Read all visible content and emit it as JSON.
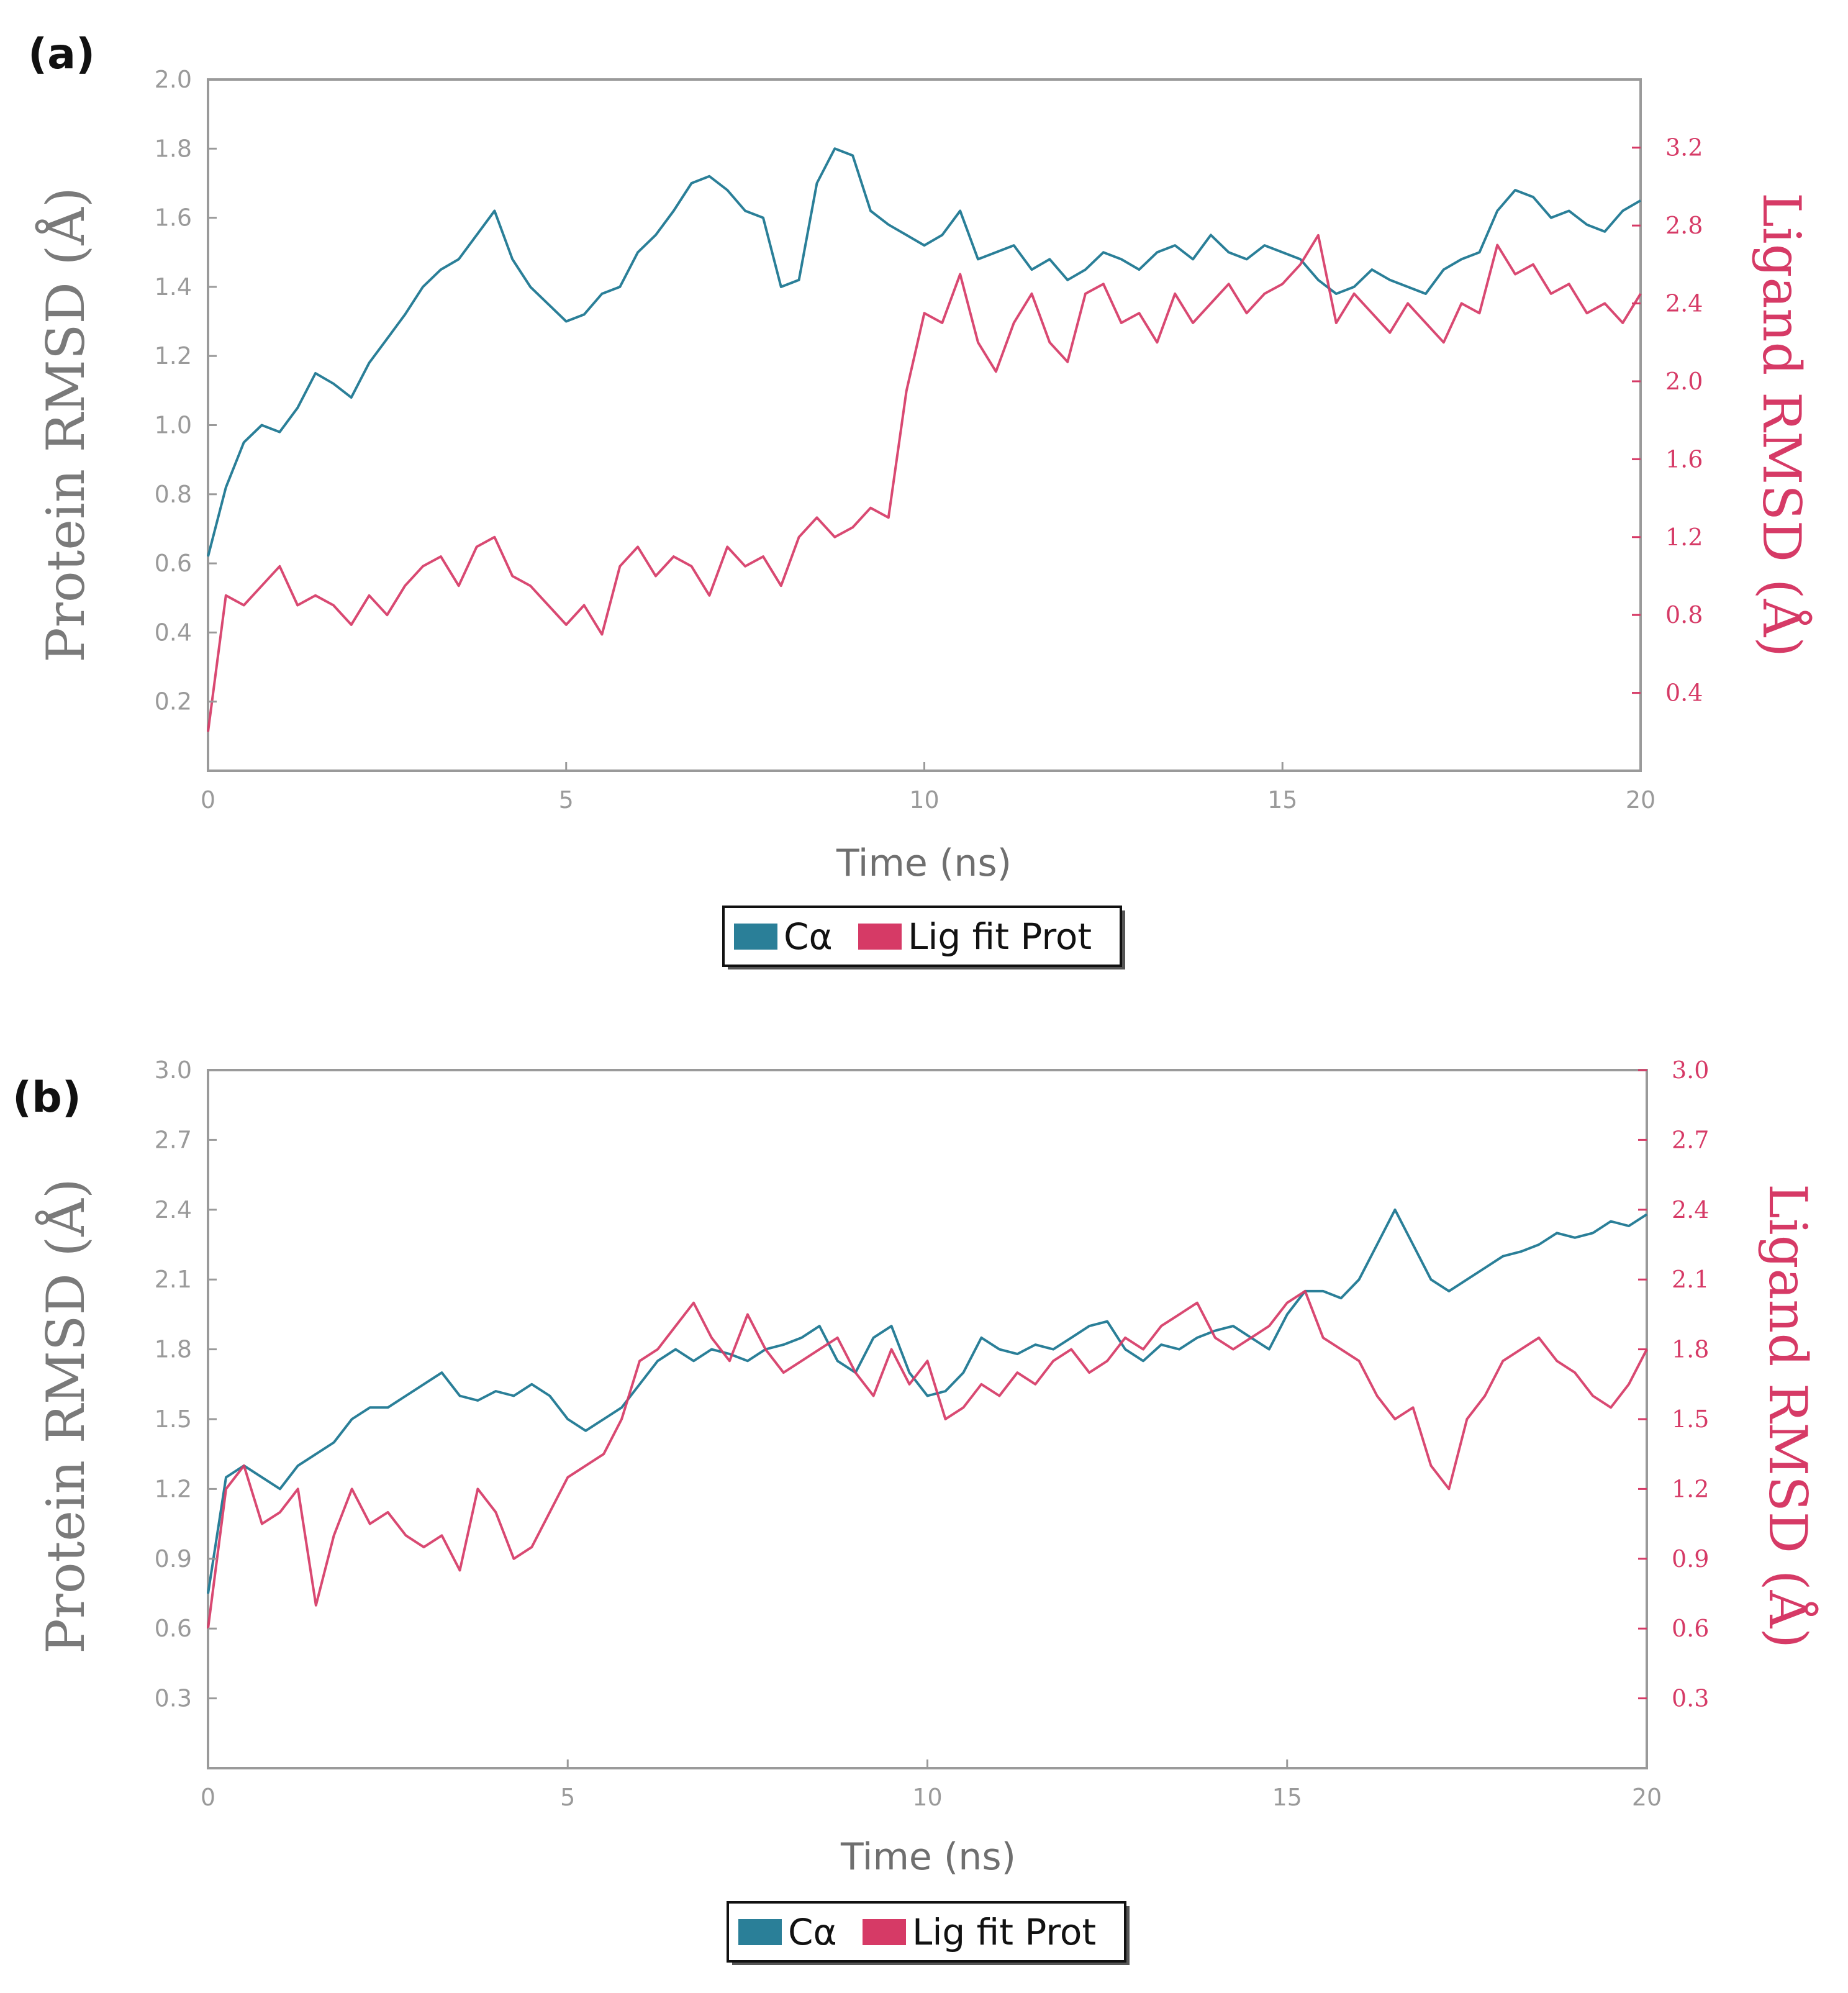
{
  "figure": {
    "panels": [
      "(a)",
      "(b)"
    ]
  },
  "colors": {
    "protein": "#2a7f98",
    "ligand": "#d63a66",
    "axis": "#9a9a9a"
  },
  "chart_data": [
    {
      "type": "line",
      "panel_label": "(a)",
      "xlabel": "Time (ns)",
      "ylabel_left": "Protein RMSD (Å)",
      "ylabel_right": "Ligand RMSD (Å)",
      "xlim": [
        0,
        20
      ],
      "xticks": [
        0,
        5,
        10,
        15,
        20
      ],
      "xtick_labels": [
        "0",
        "5",
        "10",
        "15",
        "20"
      ],
      "ylim_left": [
        0,
        2.0
      ],
      "yticks_left": [
        0.2,
        0.4,
        0.6,
        0.8,
        1.0,
        1.2,
        1.4,
        1.6,
        1.8,
        2.0
      ],
      "ytick_labels_left": [
        "0.2",
        "0.4",
        "0.6",
        "0.8",
        "1.0",
        "1.2",
        "1.4",
        "1.6",
        "1.8",
        "2.0"
      ],
      "ylim_right": [
        0,
        3.55
      ],
      "yticks_right": [
        0.4,
        0.8,
        1.2,
        1.6,
        2.0,
        2.4,
        2.8,
        3.2
      ],
      "ytick_labels_right": [
        "0.4",
        "0.8",
        "1.2",
        "1.6",
        "2.0",
        "2.4",
        "2.8",
        "3.2"
      ],
      "legend": [
        "Cα",
        "Lig fit Prot"
      ],
      "series": [
        {
          "name": "Cα",
          "axis": "left",
          "x": [
            0,
            0.25,
            0.5,
            0.75,
            1,
            1.25,
            1.5,
            1.75,
            2,
            2.25,
            2.5,
            2.75,
            3,
            3.25,
            3.5,
            3.75,
            4,
            4.25,
            4.5,
            4.75,
            5,
            5.25,
            5.5,
            5.75,
            6,
            6.25,
            6.5,
            6.75,
            7,
            7.25,
            7.5,
            7.75,
            8,
            8.25,
            8.5,
            8.75,
            9,
            9.25,
            9.5,
            9.75,
            10,
            10.25,
            10.5,
            10.75,
            11,
            11.25,
            11.5,
            11.75,
            12,
            12.25,
            12.5,
            12.75,
            13,
            13.25,
            13.5,
            13.75,
            14,
            14.25,
            14.5,
            14.75,
            15,
            15.25,
            15.5,
            15.75,
            16,
            16.25,
            16.5,
            16.75,
            17,
            17.25,
            17.5,
            17.75,
            18,
            18.25,
            18.5,
            18.75,
            19,
            19.25,
            19.5,
            19.75,
            20
          ],
          "values": [
            0.62,
            0.82,
            0.95,
            1.0,
            0.98,
            1.05,
            1.15,
            1.12,
            1.08,
            1.18,
            1.25,
            1.32,
            1.4,
            1.45,
            1.48,
            1.55,
            1.62,
            1.48,
            1.4,
            1.35,
            1.3,
            1.32,
            1.38,
            1.4,
            1.5,
            1.55,
            1.62,
            1.7,
            1.72,
            1.68,
            1.62,
            1.6,
            1.4,
            1.42,
            1.7,
            1.8,
            1.78,
            1.62,
            1.58,
            1.55,
            1.52,
            1.55,
            1.62,
            1.48,
            1.5,
            1.52,
            1.45,
            1.48,
            1.42,
            1.45,
            1.5,
            1.48,
            1.45,
            1.5,
            1.52,
            1.48,
            1.55,
            1.5,
            1.48,
            1.52,
            1.5,
            1.48,
            1.42,
            1.38,
            1.4,
            1.45,
            1.42,
            1.4,
            1.38,
            1.45,
            1.48,
            1.5,
            1.62,
            1.68,
            1.66,
            1.6,
            1.62,
            1.58,
            1.56,
            1.62,
            1.65
          ]
        },
        {
          "name": "Lig fit Prot",
          "axis": "right",
          "x": [
            0,
            0.25,
            0.5,
            0.75,
            1,
            1.25,
            1.5,
            1.75,
            2,
            2.25,
            2.5,
            2.75,
            3,
            3.25,
            3.5,
            3.75,
            4,
            4.25,
            4.5,
            4.75,
            5,
            5.25,
            5.5,
            5.75,
            6,
            6.25,
            6.5,
            6.75,
            7,
            7.25,
            7.5,
            7.75,
            8,
            8.25,
            8.5,
            8.75,
            9,
            9.25,
            9.5,
            9.75,
            10,
            10.25,
            10.5,
            10.75,
            11,
            11.25,
            11.5,
            11.75,
            12,
            12.25,
            12.5,
            12.75,
            13,
            13.25,
            13.5,
            13.75,
            14,
            14.25,
            14.5,
            14.75,
            15,
            15.25,
            15.5,
            15.75,
            16,
            16.25,
            16.5,
            16.75,
            17,
            17.25,
            17.5,
            17.75,
            18,
            18.25,
            18.5,
            18.75,
            19,
            19.25,
            19.5,
            19.75,
            20
          ],
          "values": [
            0.2,
            0.9,
            0.85,
            0.95,
            1.05,
            0.85,
            0.9,
            0.85,
            0.75,
            0.9,
            0.8,
            0.95,
            1.05,
            1.1,
            0.95,
            1.15,
            1.2,
            1.0,
            0.95,
            0.85,
            0.75,
            0.85,
            0.7,
            1.05,
            1.15,
            1.0,
            1.1,
            1.05,
            0.9,
            1.15,
            1.05,
            1.1,
            0.95,
            1.2,
            1.3,
            1.2,
            1.25,
            1.35,
            1.3,
            1.95,
            2.35,
            2.3,
            2.55,
            2.2,
            2.05,
            2.3,
            2.45,
            2.2,
            2.1,
            2.45,
            2.5,
            2.3,
            2.35,
            2.2,
            2.45,
            2.3,
            2.4,
            2.5,
            2.35,
            2.45,
            2.5,
            2.6,
            2.75,
            2.3,
            2.45,
            2.35,
            2.25,
            2.4,
            2.3,
            2.2,
            2.4,
            2.35,
            2.7,
            2.55,
            2.6,
            2.45,
            2.5,
            2.35,
            2.4,
            2.3,
            2.45
          ]
        }
      ]
    },
    {
      "type": "line",
      "panel_label": "(b)",
      "xlabel": "Time (ns)",
      "ylabel_left": "Protein RMSD (Å)",
      "ylabel_right": "Ligand RMSD (Å)",
      "xlim": [
        0,
        20
      ],
      "xticks": [
        0,
        5,
        10,
        15,
        20
      ],
      "xtick_labels": [
        "0",
        "5",
        "10",
        "15",
        "20"
      ],
      "ylim_left": [
        0,
        3.0
      ],
      "yticks_left": [
        0.3,
        0.6,
        0.9,
        1.2,
        1.5,
        1.8,
        2.1,
        2.4,
        2.7,
        3.0
      ],
      "ytick_labels_left": [
        "0.3",
        "0.6",
        "0.9",
        "1.2",
        "1.5",
        "1.8",
        "2.1",
        "2.4",
        "2.7",
        "3.0"
      ],
      "ylim_right": [
        0,
        3.0
      ],
      "yticks_right": [
        0.3,
        0.6,
        0.9,
        1.2,
        1.5,
        1.8,
        2.1,
        2.4,
        2.7,
        3.0
      ],
      "ytick_labels_right": [
        "0.3",
        "0.6",
        "0.9",
        "1.2",
        "1.5",
        "1.8",
        "2.1",
        "2.4",
        "2.7",
        "3.0"
      ],
      "legend": [
        "Cα",
        "Lig fit Prot"
      ],
      "series": [
        {
          "name": "Cα",
          "axis": "left",
          "x": [
            0,
            0.25,
            0.5,
            0.75,
            1,
            1.25,
            1.5,
            1.75,
            2,
            2.25,
            2.5,
            2.75,
            3,
            3.25,
            3.5,
            3.75,
            4,
            4.25,
            4.5,
            4.75,
            5,
            5.25,
            5.5,
            5.75,
            6,
            6.25,
            6.5,
            6.75,
            7,
            7.25,
            7.5,
            7.75,
            8,
            8.25,
            8.5,
            8.75,
            9,
            9.25,
            9.5,
            9.75,
            10,
            10.25,
            10.5,
            10.75,
            11,
            11.25,
            11.5,
            11.75,
            12,
            12.25,
            12.5,
            12.75,
            13,
            13.25,
            13.5,
            13.75,
            14,
            14.25,
            14.5,
            14.75,
            15,
            15.25,
            15.5,
            15.75,
            16,
            16.25,
            16.5,
            16.75,
            17,
            17.25,
            17.5,
            17.75,
            18,
            18.25,
            18.5,
            18.75,
            19,
            19.25,
            19.5,
            19.75,
            20
          ],
          "values": [
            0.75,
            1.25,
            1.3,
            1.25,
            1.2,
            1.3,
            1.35,
            1.4,
            1.5,
            1.55,
            1.55,
            1.6,
            1.65,
            1.7,
            1.6,
            1.58,
            1.62,
            1.6,
            1.65,
            1.6,
            1.5,
            1.45,
            1.5,
            1.55,
            1.65,
            1.75,
            1.8,
            1.75,
            1.8,
            1.78,
            1.75,
            1.8,
            1.82,
            1.85,
            1.9,
            1.75,
            1.7,
            1.85,
            1.9,
            1.7,
            1.6,
            1.62,
            1.7,
            1.85,
            1.8,
            1.78,
            1.82,
            1.8,
            1.85,
            1.9,
            1.92,
            1.8,
            1.75,
            1.82,
            1.8,
            1.85,
            1.88,
            1.9,
            1.85,
            1.8,
            1.95,
            2.05,
            2.05,
            2.02,
            2.1,
            2.25,
            2.4,
            2.25,
            2.1,
            2.05,
            2.1,
            2.15,
            2.2,
            2.22,
            2.25,
            2.3,
            2.28,
            2.3,
            2.35,
            2.33,
            2.38
          ]
        },
        {
          "name": "Lig fit Prot",
          "axis": "right",
          "x": [
            0,
            0.25,
            0.5,
            0.75,
            1,
            1.25,
            1.5,
            1.75,
            2,
            2.25,
            2.5,
            2.75,
            3,
            3.25,
            3.5,
            3.75,
            4,
            4.25,
            4.5,
            4.75,
            5,
            5.25,
            5.5,
            5.75,
            6,
            6.25,
            6.5,
            6.75,
            7,
            7.25,
            7.5,
            7.75,
            8,
            8.25,
            8.5,
            8.75,
            9,
            9.25,
            9.5,
            9.75,
            10,
            10.25,
            10.5,
            10.75,
            11,
            11.25,
            11.5,
            11.75,
            12,
            12.25,
            12.5,
            12.75,
            13,
            13.25,
            13.5,
            13.75,
            14,
            14.25,
            14.5,
            14.75,
            15,
            15.25,
            15.5,
            15.75,
            16,
            16.25,
            16.5,
            16.75,
            17,
            17.25,
            17.5,
            17.75,
            18,
            18.25,
            18.5,
            18.75,
            19,
            19.25,
            19.5,
            19.75,
            20
          ],
          "values": [
            0.6,
            1.2,
            1.3,
            1.05,
            1.1,
            1.2,
            0.7,
            1.0,
            1.2,
            1.05,
            1.1,
            1.0,
            0.95,
            1.0,
            0.85,
            1.2,
            1.1,
            0.9,
            0.95,
            1.1,
            1.25,
            1.3,
            1.35,
            1.5,
            1.75,
            1.8,
            1.9,
            2.0,
            1.85,
            1.75,
            1.95,
            1.8,
            1.7,
            1.75,
            1.8,
            1.85,
            1.7,
            1.6,
            1.8,
            1.65,
            1.75,
            1.5,
            1.55,
            1.65,
            1.6,
            1.7,
            1.65,
            1.75,
            1.8,
            1.7,
            1.75,
            1.85,
            1.8,
            1.9,
            1.95,
            2.0,
            1.85,
            1.8,
            1.85,
            1.9,
            2.0,
            2.05,
            1.85,
            1.8,
            1.75,
            1.6,
            1.5,
            1.55,
            1.3,
            1.2,
            1.5,
            1.6,
            1.75,
            1.8,
            1.85,
            1.75,
            1.7,
            1.6,
            1.55,
            1.65,
            1.8
          ]
        }
      ]
    }
  ]
}
